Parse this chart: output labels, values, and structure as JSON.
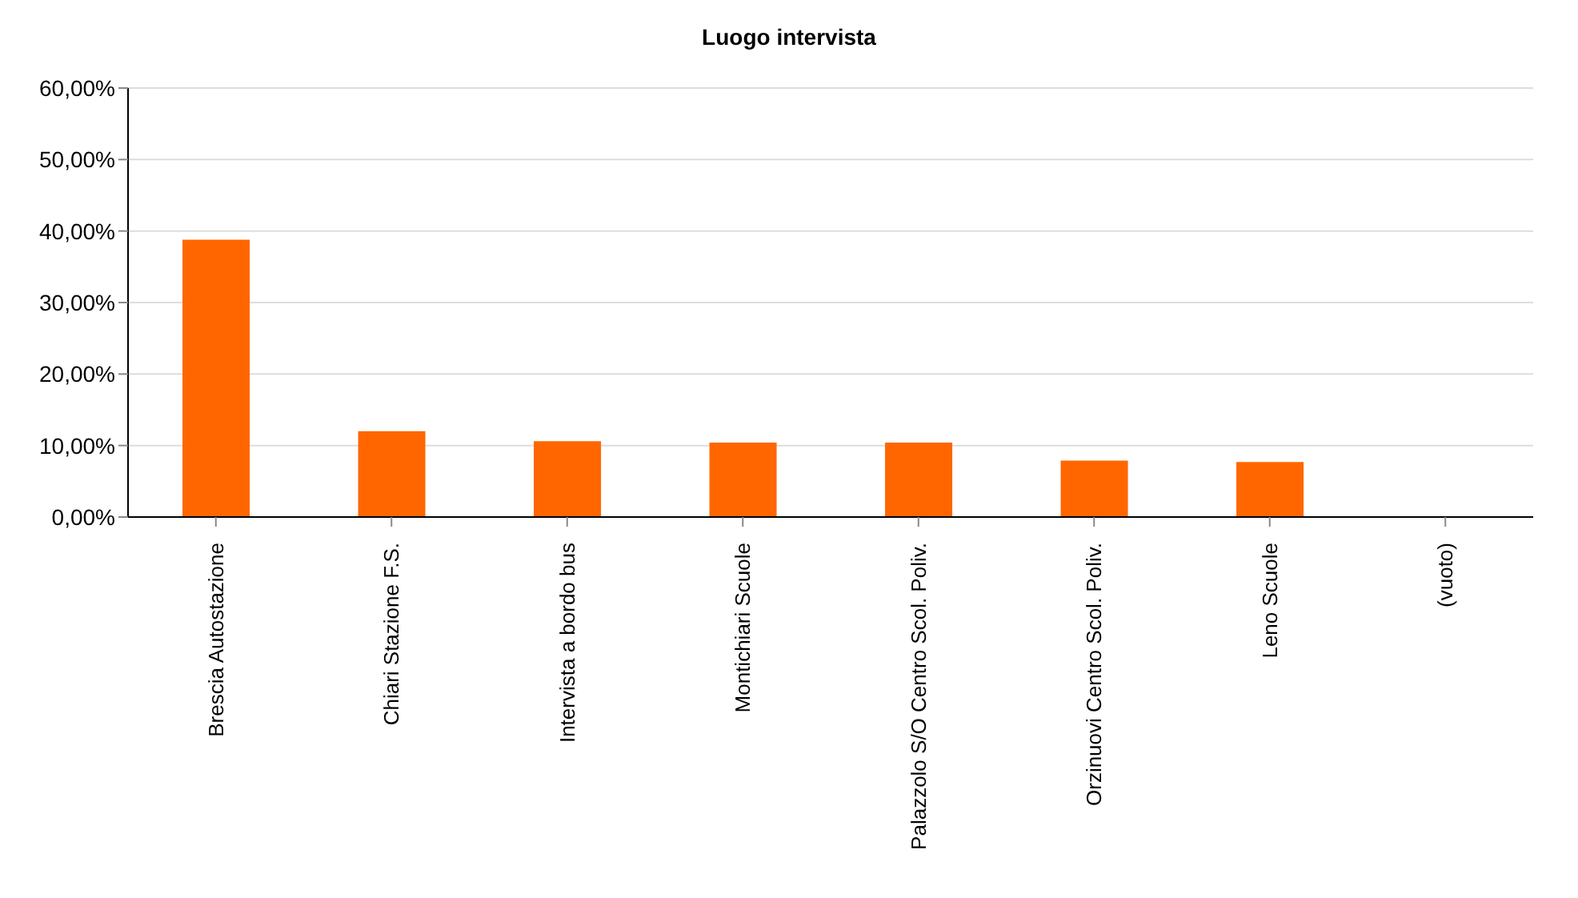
{
  "chart_data": {
    "type": "bar",
    "title": "Luogo intervista",
    "categories": [
      "Brescia Autostazione",
      "Chiari Stazione F.S.",
      "Intervista a bordo bus",
      "Montichiari Scuole",
      "Palazzolo S/O Centro Scol. Poliv.",
      "Orzinuovi Centro Scol. Poliv.",
      "Leno Scuole",
      "(vuoto)"
    ],
    "values": [
      38.8,
      12.0,
      10.6,
      10.4,
      10.4,
      7.9,
      7.7,
      0
    ],
    "color": "#ff6600",
    "ylim": [
      0,
      60
    ],
    "yticks": [
      {
        "value": 0,
        "label": "0,00%"
      },
      {
        "value": 10,
        "label": "10,00%"
      },
      {
        "value": 20,
        "label": "20,00%"
      },
      {
        "value": 30,
        "label": "30,00%"
      },
      {
        "value": 40,
        "label": "40,00%"
      },
      {
        "value": 50,
        "label": "50,00%"
      },
      {
        "value": 60,
        "label": "60,00%"
      }
    ],
    "grid": "y",
    "legend": false
  }
}
